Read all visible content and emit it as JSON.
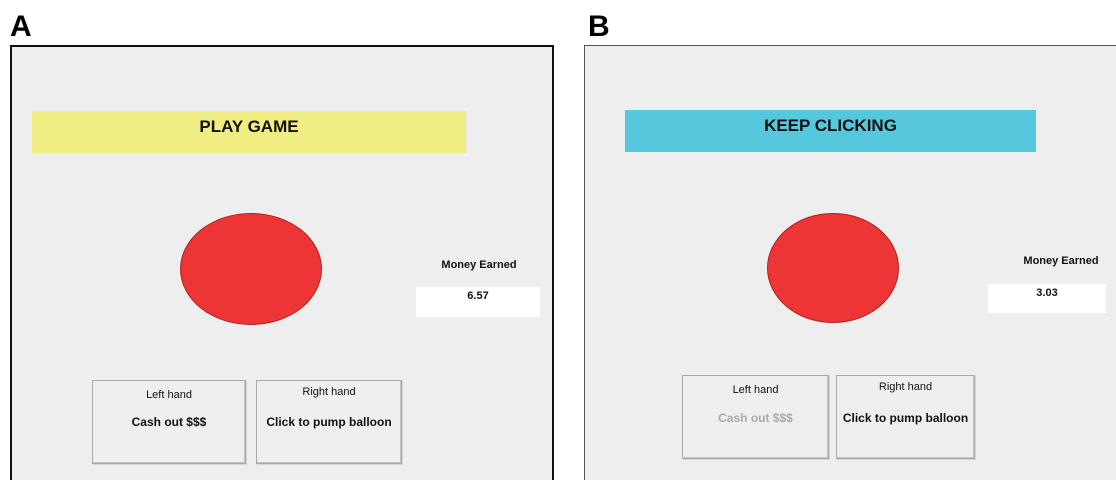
{
  "panels": [
    {
      "letter": "A",
      "banner": {
        "text": "PLAY GAME",
        "color": "#f0ed82"
      },
      "balloon_color": "#ee3535",
      "money": {
        "label": "Money Earned",
        "value": "6.57"
      },
      "left_button": {
        "hand": "Left hand",
        "action": "Cash out $$$",
        "enabled": true
      },
      "right_button": {
        "hand": "Right hand",
        "action": "Click to pump balloon",
        "enabled": true
      }
    },
    {
      "letter": "B",
      "banner": {
        "text": "KEEP CLICKING",
        "color": "#55c8de"
      },
      "balloon_color": "#ee3535",
      "money": {
        "label": "Money Earned",
        "value": "3.03"
      },
      "left_button": {
        "hand": "Left hand",
        "action": "Cash out $$$",
        "enabled": false
      },
      "right_button": {
        "hand": "Right hand",
        "action": "Click to pump balloon",
        "enabled": true
      }
    }
  ]
}
